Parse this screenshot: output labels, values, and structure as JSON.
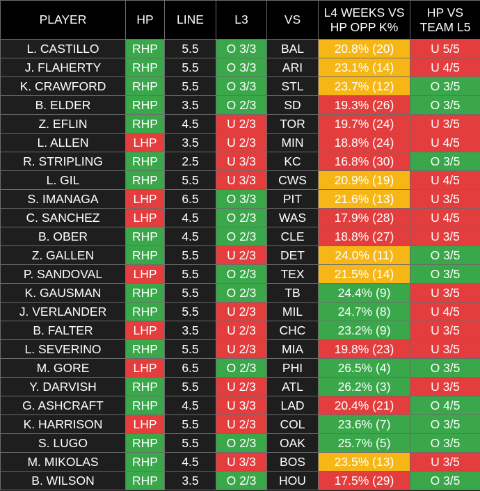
{
  "headers": [
    "PLAYER",
    "HP",
    "LINE",
    "L3",
    "VS",
    "L4 WEEKS VS HP OPP K%",
    "HP VS TEAM L5"
  ],
  "colors": {
    "green": "#3aa84a",
    "red": "#e33d3d",
    "yellow": "#f6b716",
    "dark": "#1e1e1e",
    "header": "#000000"
  },
  "rows": [
    {
      "player": "L. CASTILLO",
      "hp": "RHP",
      "line": "5.5",
      "l3": "O 3/3",
      "vs": "BAL",
      "k": "20.8% (20)",
      "k_color": "y",
      "team": "U 5/5"
    },
    {
      "player": "J. FLAHERTY",
      "hp": "RHP",
      "line": "5.5",
      "l3": "O 3/3",
      "vs": "ARI",
      "k": "23.1% (14)",
      "k_color": "y",
      "team": "U 4/5"
    },
    {
      "player": "K. CRAWFORD",
      "hp": "RHP",
      "line": "5.5",
      "l3": "O 3/3",
      "vs": "STL",
      "k": "23.7% (12)",
      "k_color": "y",
      "team": "O 3/5"
    },
    {
      "player": "B. ELDER",
      "hp": "RHP",
      "line": "3.5",
      "l3": "O 2/3",
      "vs": "SD",
      "k": "19.3% (26)",
      "k_color": "r",
      "team": "O 3/5"
    },
    {
      "player": "Z. EFLIN",
      "hp": "RHP",
      "line": "4.5",
      "l3": "U 2/3",
      "vs": "TOR",
      "k": "19.7% (24)",
      "k_color": "r",
      "team": "U 3/5"
    },
    {
      "player": "L. ALLEN",
      "hp": "LHP",
      "line": "3.5",
      "l3": "U 2/3",
      "vs": "MIN",
      "k": "18.8% (24)",
      "k_color": "r",
      "team": "U 4/5"
    },
    {
      "player": "R. STRIPLING",
      "hp": "RHP",
      "line": "2.5",
      "l3": "U 3/3",
      "vs": "KC",
      "k": "16.8% (30)",
      "k_color": "r",
      "team": "O 3/5"
    },
    {
      "player": "L. GIL",
      "hp": "RHP",
      "line": "5.5",
      "l3": "U 3/3",
      "vs": "CWS",
      "k": "20.9% (19)",
      "k_color": "y",
      "team": "U 4/5"
    },
    {
      "player": "S. IMANAGA",
      "hp": "LHP",
      "line": "6.5",
      "l3": "O 3/3",
      "vs": "PIT",
      "k": "21.6% (13)",
      "k_color": "y",
      "team": "U 3/5"
    },
    {
      "player": "C. SANCHEZ",
      "hp": "LHP",
      "line": "4.5",
      "l3": "O 2/3",
      "vs": "WAS",
      "k": "17.9% (28)",
      "k_color": "r",
      "team": "U 4/5"
    },
    {
      "player": "B. OBER",
      "hp": "RHP",
      "line": "4.5",
      "l3": "O 2/3",
      "vs": "CLE",
      "k": "18.8% (27)",
      "k_color": "r",
      "team": "U 3/5"
    },
    {
      "player": "Z. GALLEN",
      "hp": "RHP",
      "line": "5.5",
      "l3": "U 2/3",
      "vs": "DET",
      "k": "24.0% (11)",
      "k_color": "y",
      "team": "O 3/5"
    },
    {
      "player": "P. SANDOVAL",
      "hp": "LHP",
      "line": "5.5",
      "l3": "O 2/3",
      "vs": "TEX",
      "k": "21.5% (14)",
      "k_color": "y",
      "team": "O 3/5"
    },
    {
      "player": "K. GAUSMAN",
      "hp": "RHP",
      "line": "5.5",
      "l3": "O 2/3",
      "vs": "TB",
      "k": "24.4% (9)",
      "k_color": "g",
      "team": "U 3/5"
    },
    {
      "player": "J. VERLANDER",
      "hp": "RHP",
      "line": "5.5",
      "l3": "U 2/3",
      "vs": "MIL",
      "k": "24.7% (8)",
      "k_color": "g",
      "team": "U 4/5"
    },
    {
      "player": "B. FALTER",
      "hp": "LHP",
      "line": "3.5",
      "l3": "U 2/3",
      "vs": "CHC",
      "k": "23.2% (9)",
      "k_color": "g",
      "team": "U 3/5"
    },
    {
      "player": "L. SEVERINO",
      "hp": "RHP",
      "line": "5.5",
      "l3": "U 2/3",
      "vs": "MIA",
      "k": "19.8% (23)",
      "k_color": "r",
      "team": "U 3/5"
    },
    {
      "player": "M. GORE",
      "hp": "LHP",
      "line": "6.5",
      "l3": "O 2/3",
      "vs": "PHI",
      "k": "26.5% (4)",
      "k_color": "g",
      "team": "O 3/5"
    },
    {
      "player": "Y. DARVISH",
      "hp": "RHP",
      "line": "5.5",
      "l3": "U 2/3",
      "vs": "ATL",
      "k": "26.2% (3)",
      "k_color": "g",
      "team": "U 3/5"
    },
    {
      "player": "G. ASHCRAFT",
      "hp": "RHP",
      "line": "4.5",
      "l3": "U 3/3",
      "vs": "LAD",
      "k": "20.4% (21)",
      "k_color": "r",
      "team": "O 4/5"
    },
    {
      "player": "K. HARRISON",
      "hp": "LHP",
      "line": "5.5",
      "l3": "U 2/3",
      "vs": "COL",
      "k": "23.6% (7)",
      "k_color": "g",
      "team": "O 3/5"
    },
    {
      "player": "S. LUGO",
      "hp": "RHP",
      "line": "5.5",
      "l3": "O 2/3",
      "vs": "OAK",
      "k": "25.7% (5)",
      "k_color": "g",
      "team": "O 3/5"
    },
    {
      "player": "M. MIKOLAS",
      "hp": "RHP",
      "line": "4.5",
      "l3": "U 3/3",
      "vs": "BOS",
      "k": "23.5% (13)",
      "k_color": "y",
      "team": "U 3/5"
    },
    {
      "player": "B. WILSON",
      "hp": "RHP",
      "line": "3.5",
      "l3": "O 2/3",
      "vs": "HOU",
      "k": "17.5% (29)",
      "k_color": "r",
      "team": "O 3/5"
    }
  ]
}
